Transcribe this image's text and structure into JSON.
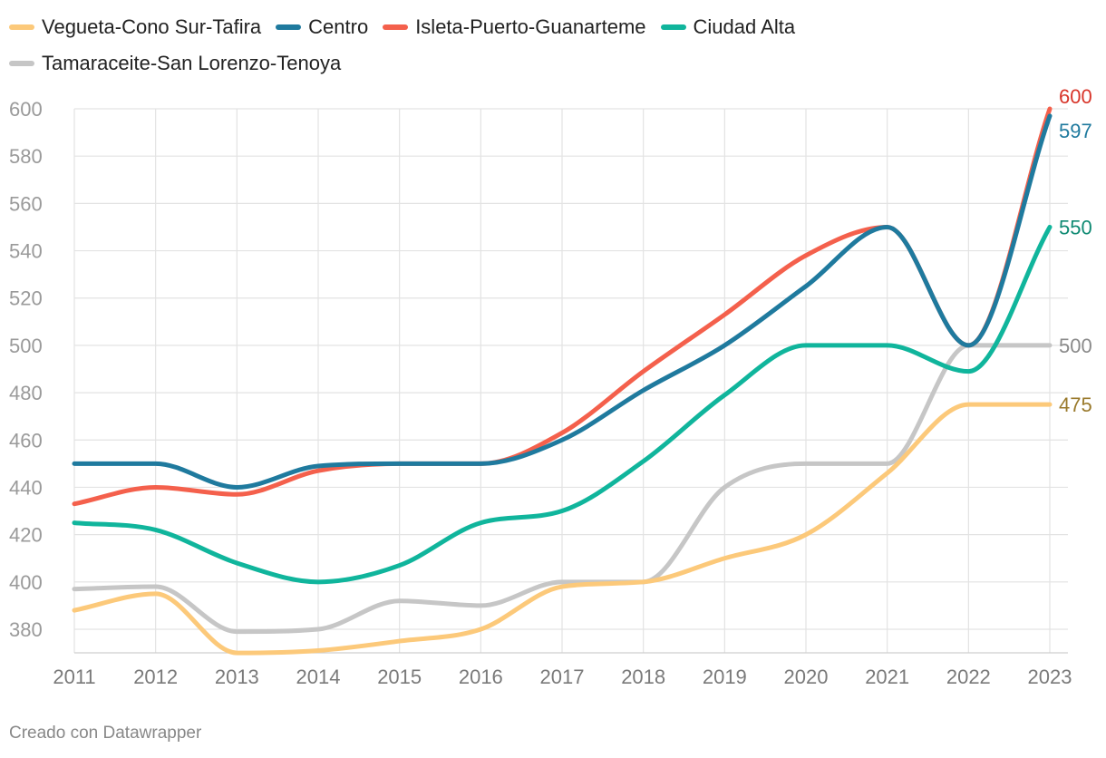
{
  "chart_data": {
    "type": "line",
    "title": "",
    "xlabel": "",
    "ylabel": "",
    "x": [
      "2011",
      "2012",
      "2013",
      "2014",
      "2015",
      "2016",
      "2017",
      "2018",
      "2019",
      "2020",
      "2021",
      "2022",
      "2023"
    ],
    "ylim": [
      370,
      600
    ],
    "yticks": [
      380,
      400,
      420,
      440,
      460,
      480,
      500,
      520,
      540,
      560,
      580,
      600
    ],
    "grid": true,
    "legend_position": "top",
    "series": [
      {
        "name": "Vegueta-Cono Sur-Tafira",
        "color": "#fcc97a",
        "label_color": "#9a7a2c",
        "end_label": "475",
        "values": [
          388,
          395,
          370,
          371,
          375,
          380,
          398,
          400,
          410,
          420,
          446,
          475,
          475
        ]
      },
      {
        "name": "Centro",
        "color": "#1f7a9e",
        "label_color": "#1f7a9e",
        "end_label": "597",
        "values": [
          450,
          450,
          440,
          449,
          450,
          450,
          460,
          481,
          500,
          525,
          550,
          500,
          597
        ]
      },
      {
        "name": "Isleta-Puerto-Guanarteme",
        "color": "#f4604c",
        "label_color": "#d8352a",
        "end_label": "600",
        "values": [
          433,
          440,
          437,
          447,
          450,
          450,
          463,
          489,
          513,
          538,
          550,
          500,
          600
        ]
      },
      {
        "name": "Ciudad Alta",
        "color": "#10b59c",
        "label_color": "#0f8a73",
        "end_label": "550",
        "values": [
          425,
          422,
          408,
          400,
          407,
          425,
          430,
          451,
          479,
          500,
          500,
          489,
          550
        ]
      },
      {
        "name": "Tamaraceite-San Lorenzo-Tenoya",
        "color": "#c6c6c6",
        "label_color": "#8a8a8a",
        "end_label": "500",
        "values": [
          397,
          398,
          379,
          380,
          392,
          390,
          400,
          400,
          440,
          450,
          450,
          500,
          500
        ]
      }
    ],
    "source_note": "Creado con Datawrapper"
  }
}
